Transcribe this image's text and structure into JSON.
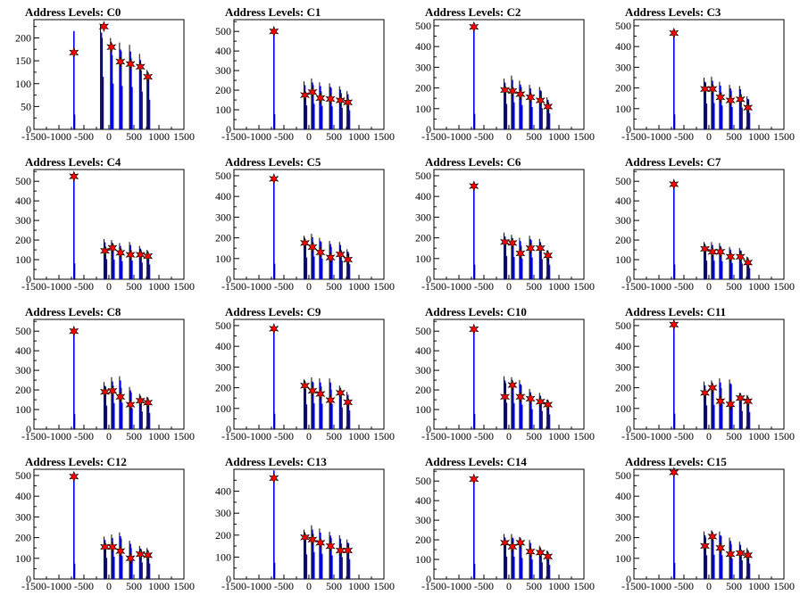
{
  "chart_data": [
    {
      "type": "line",
      "title": "Address Levels: C0",
      "xlim": [
        -1500,
        1500
      ],
      "ylim": [
        0,
        240
      ],
      "yticks": [
        0,
        50,
        100,
        150,
        200
      ],
      "series": [
        {
          "values": [
            [
              -700,
              215
            ],
            [
              -150,
              230
            ],
            [
              50,
              200
            ],
            [
              230,
              190
            ],
            [
              430,
              185
            ],
            [
              630,
              165
            ],
            [
              780,
              130
            ]
          ]
        }
      ],
      "markers": [
        [
          -700,
          168
        ],
        [
          -100,
          225
        ],
        [
          50,
          180
        ],
        [
          230,
          148
        ],
        [
          430,
          143
        ],
        [
          630,
          137
        ],
        [
          780,
          115
        ]
      ]
    },
    {
      "type": "line",
      "title": "Address Levels: C1",
      "xlim": [
        -1500,
        1500
      ],
      "ylim": [
        0,
        560
      ],
      "yticks": [
        0,
        100,
        200,
        300,
        400,
        500
      ],
      "series": [
        {
          "values": [
            [
              -700,
              520
            ],
            [
              -80,
              245
            ],
            [
              70,
              260
            ],
            [
              230,
              240
            ],
            [
              430,
              235
            ],
            [
              630,
              220
            ],
            [
              780,
              195
            ]
          ]
        }
      ],
      "markers": [
        [
          -700,
          500
        ],
        [
          -80,
          175
        ],
        [
          70,
          190
        ],
        [
          230,
          160
        ],
        [
          430,
          155
        ],
        [
          630,
          148
        ],
        [
          780,
          138
        ]
      ]
    },
    {
      "type": "line",
      "title": "Address Levels: C2",
      "xlim": [
        -1500,
        1500
      ],
      "ylim": [
        0,
        530
      ],
      "yticks": [
        0,
        100,
        200,
        300,
        400,
        500
      ],
      "series": [
        {
          "values": [
            [
              -700,
              500
            ],
            [
              -80,
              245
            ],
            [
              70,
              260
            ],
            [
              230,
              235
            ],
            [
              430,
              215
            ],
            [
              630,
              205
            ],
            [
              780,
              155
            ]
          ]
        }
      ],
      "markers": [
        [
          -700,
          495
        ],
        [
          -80,
          190
        ],
        [
          70,
          185
        ],
        [
          230,
          170
        ],
        [
          430,
          155
        ],
        [
          630,
          140
        ],
        [
          780,
          110
        ]
      ]
    },
    {
      "type": "line",
      "title": "Address Levels: C3",
      "xlim": [
        -1500,
        1500
      ],
      "ylim": [
        0,
        530
      ],
      "yticks": [
        0,
        100,
        200,
        300,
        400,
        500
      ],
      "series": [
        {
          "values": [
            [
              -700,
              480
            ],
            [
              -80,
              250
            ],
            [
              70,
              255
            ],
            [
              230,
              230
            ],
            [
              430,
              215
            ],
            [
              630,
              210
            ],
            [
              780,
              160
            ]
          ]
        }
      ],
      "markers": [
        [
          -700,
          465
        ],
        [
          -80,
          195
        ],
        [
          70,
          195
        ],
        [
          230,
          155
        ],
        [
          430,
          140
        ],
        [
          630,
          145
        ],
        [
          780,
          105
        ]
      ]
    },
    {
      "type": "line",
      "title": "Address Levels: C4",
      "xlim": [
        -1500,
        1500
      ],
      "ylim": [
        0,
        560
      ],
      "yticks": [
        0,
        100,
        200,
        300,
        400,
        500
      ],
      "series": [
        {
          "values": [
            [
              -700,
              540
            ],
            [
              -80,
              205
            ],
            [
              70,
              200
            ],
            [
              230,
              185
            ],
            [
              430,
              190
            ],
            [
              630,
              170
            ],
            [
              780,
              150
            ]
          ]
        }
      ],
      "markers": [
        [
          -700,
          525
        ],
        [
          -80,
          145
        ],
        [
          70,
          160
        ],
        [
          230,
          135
        ],
        [
          430,
          125
        ],
        [
          630,
          125
        ],
        [
          780,
          118
        ]
      ]
    },
    {
      "type": "line",
      "title": "Address Levels: C5",
      "xlim": [
        -1500,
        1500
      ],
      "ylim": [
        0,
        530
      ],
      "yticks": [
        0,
        100,
        200,
        300,
        400,
        500
      ],
      "series": [
        {
          "values": [
            [
              -700,
              500
            ],
            [
              -80,
              210
            ],
            [
              70,
              220
            ],
            [
              230,
              200
            ],
            [
              430,
              185
            ],
            [
              630,
              180
            ],
            [
              780,
              145
            ]
          ]
        }
      ],
      "markers": [
        [
          -700,
          485
        ],
        [
          -80,
          175
        ],
        [
          70,
          155
        ],
        [
          230,
          130
        ],
        [
          430,
          105
        ],
        [
          630,
          120
        ],
        [
          780,
          95
        ]
      ]
    },
    {
      "type": "line",
      "title": "Address Levels: C6",
      "xlim": [
        -1500,
        1500
      ],
      "ylim": [
        0,
        530
      ],
      "yticks": [
        0,
        100,
        200,
        300,
        400,
        500
      ],
      "series": [
        {
          "values": [
            [
              -700,
              470
            ],
            [
              -80,
              225
            ],
            [
              70,
              215
            ],
            [
              230,
              200
            ],
            [
              430,
              210
            ],
            [
              630,
              195
            ],
            [
              780,
              140
            ]
          ]
        }
      ],
      "markers": [
        [
          -700,
          450
        ],
        [
          -80,
          180
        ],
        [
          70,
          175
        ],
        [
          230,
          125
        ],
        [
          430,
          150
        ],
        [
          630,
          150
        ],
        [
          780,
          115
        ]
      ]
    },
    {
      "type": "line",
      "title": "Address Levels: C7",
      "xlim": [
        -1500,
        1500
      ],
      "ylim": [
        0,
        560
      ],
      "yticks": [
        0,
        100,
        200,
        300,
        400,
        500
      ],
      "series": [
        {
          "values": [
            [
              -700,
              500
            ],
            [
              -80,
              190
            ],
            [
              70,
              190
            ],
            [
              230,
              185
            ],
            [
              430,
              165
            ],
            [
              630,
              160
            ],
            [
              780,
              115
            ]
          ]
        }
      ],
      "markers": [
        [
          -700,
          485
        ],
        [
          -80,
          155
        ],
        [
          70,
          140
        ],
        [
          230,
          140
        ],
        [
          430,
          115
        ],
        [
          630,
          115
        ],
        [
          780,
          85
        ]
      ]
    },
    {
      "type": "line",
      "title": "Address Levels: C8",
      "xlim": [
        -1500,
        1500
      ],
      "ylim": [
        0,
        560
      ],
      "yticks": [
        0,
        100,
        200,
        300,
        400,
        500
      ],
      "series": [
        {
          "values": [
            [
              -700,
              510
            ],
            [
              -80,
              240
            ],
            [
              70,
              265
            ],
            [
              230,
              270
            ],
            [
              430,
              215
            ],
            [
              630,
              180
            ],
            [
              780,
              165
            ]
          ]
        }
      ],
      "markers": [
        [
          -700,
          500
        ],
        [
          -80,
          190
        ],
        [
          70,
          195
        ],
        [
          230,
          165
        ],
        [
          430,
          125
        ],
        [
          630,
          145
        ],
        [
          780,
          135
        ]
      ]
    },
    {
      "type": "line",
      "title": "Address Levels: C9",
      "xlim": [
        -1500,
        1500
      ],
      "ylim": [
        0,
        530
      ],
      "yticks": [
        0,
        100,
        200,
        300,
        400,
        500
      ],
      "series": [
        {
          "values": [
            [
              -700,
              495
            ],
            [
              -80,
              240
            ],
            [
              70,
              250
            ],
            [
              230,
              245
            ],
            [
              430,
              245
            ],
            [
              630,
              210
            ],
            [
              780,
              180
            ]
          ]
        }
      ],
      "markers": [
        [
          -700,
          485
        ],
        [
          -80,
          210
        ],
        [
          70,
          185
        ],
        [
          230,
          170
        ],
        [
          430,
          140
        ],
        [
          630,
          175
        ],
        [
          780,
          130
        ]
      ]
    },
    {
      "type": "line",
      "title": "Address Levels: C10",
      "xlim": [
        -1500,
        1500
      ],
      "ylim": [
        0,
        560
      ],
      "yticks": [
        0,
        100,
        200,
        300,
        400,
        500
      ],
      "series": [
        {
          "values": [
            [
              -700,
              520
            ],
            [
              -80,
              270
            ],
            [
              70,
              265
            ],
            [
              230,
              250
            ],
            [
              430,
              205
            ],
            [
              630,
              185
            ],
            [
              780,
              150
            ]
          ]
        }
      ],
      "markers": [
        [
          -700,
          510
        ],
        [
          -80,
          165
        ],
        [
          70,
          225
        ],
        [
          230,
          165
        ],
        [
          430,
          155
        ],
        [
          630,
          140
        ],
        [
          780,
          125
        ]
      ]
    },
    {
      "type": "line",
      "title": "Address Levels: C11",
      "xlim": [
        -1500,
        1500
      ],
      "ylim": [
        0,
        530
      ],
      "yticks": [
        0,
        100,
        200,
        300,
        400,
        500
      ],
      "series": [
        {
          "values": [
            [
              -700,
              500
            ],
            [
              -80,
              230
            ],
            [
              70,
              235
            ],
            [
              230,
              245
            ],
            [
              430,
              240
            ],
            [
              630,
              175
            ],
            [
              780,
              165
            ]
          ]
        }
      ],
      "markers": [
        [
          -700,
          505
        ],
        [
          -80,
          175
        ],
        [
          70,
          200
        ],
        [
          230,
          135
        ],
        [
          430,
          120
        ],
        [
          630,
          150
        ],
        [
          780,
          135
        ]
      ]
    },
    {
      "type": "line",
      "title": "Address Levels: C12",
      "xlim": [
        -1500,
        1500
      ],
      "ylim": [
        0,
        530
      ],
      "yticks": [
        0,
        100,
        200,
        300,
        400,
        500
      ],
      "series": [
        {
          "values": [
            [
              -700,
              495
            ],
            [
              -80,
              205
            ],
            [
              70,
              215
            ],
            [
              230,
              225
            ],
            [
              430,
              185
            ],
            [
              630,
              160
            ],
            [
              780,
              150
            ]
          ]
        }
      ],
      "markers": [
        [
          -700,
          495
        ],
        [
          -80,
          155
        ],
        [
          70,
          155
        ],
        [
          230,
          135
        ],
        [
          430,
          100
        ],
        [
          630,
          120
        ],
        [
          780,
          115
        ]
      ]
    },
    {
      "type": "line",
      "title": "Address Levels: C13",
      "xlim": [
        -1500,
        1500
      ],
      "ylim": [
        0,
        500
      ],
      "yticks": [
        0,
        100,
        200,
        300,
        400
      ],
      "series": [
        {
          "values": [
            [
              -700,
              495
            ],
            [
              -80,
              225
            ],
            [
              70,
              245
            ],
            [
              230,
              230
            ],
            [
              430,
              215
            ],
            [
              630,
              200
            ],
            [
              780,
              180
            ]
          ]
        }
      ],
      "markers": [
        [
          -700,
          460
        ],
        [
          -80,
          190
        ],
        [
          70,
          180
        ],
        [
          230,
          165
        ],
        [
          430,
          150
        ],
        [
          630,
          130
        ],
        [
          780,
          130
        ]
      ]
    },
    {
      "type": "line",
      "title": "Address Levels: C14",
      "xlim": [
        -1500,
        1500
      ],
      "ylim": [
        0,
        560
      ],
      "yticks": [
        0,
        100,
        200,
        300,
        400,
        500
      ],
      "series": [
        {
          "values": [
            [
              -700,
              520
            ],
            [
              -80,
              230
            ],
            [
              70,
              230
            ],
            [
              230,
              215
            ],
            [
              430,
              200
            ],
            [
              630,
              170
            ],
            [
              780,
              145
            ]
          ]
        }
      ],
      "markers": [
        [
          -700,
          510
        ],
        [
          -80,
          185
        ],
        [
          70,
          165
        ],
        [
          230,
          185
        ],
        [
          430,
          140
        ],
        [
          630,
          135
        ],
        [
          780,
          115
        ]
      ]
    },
    {
      "type": "line",
      "title": "Address Levels: C15",
      "xlim": [
        -1500,
        1500
      ],
      "ylim": [
        0,
        530
      ],
      "yticks": [
        0,
        100,
        200,
        300,
        400,
        500
      ],
      "series": [
        {
          "values": [
            [
              -700,
              520
            ],
            [
              -80,
              230
            ],
            [
              70,
              235
            ],
            [
              230,
              230
            ],
            [
              430,
              200
            ],
            [
              630,
              180
            ],
            [
              780,
              150
            ]
          ]
        }
      ],
      "markers": [
        [
          -700,
          515
        ],
        [
          -80,
          160
        ],
        [
          70,
          205
        ],
        [
          230,
          150
        ],
        [
          430,
          120
        ],
        [
          630,
          125
        ],
        [
          780,
          115
        ]
      ]
    }
  ],
  "x_tick_labels": [
    "-1500",
    "-1000",
    "-500",
    "0",
    "500",
    "1000",
    "1500"
  ],
  "x_tick_values": [
    -1500,
    -1000,
    -500,
    0,
    500,
    1000,
    1500
  ],
  "colors": {
    "histogram": "#0000ff",
    "background_histogram": "#000000",
    "marker": "#ff0000"
  }
}
